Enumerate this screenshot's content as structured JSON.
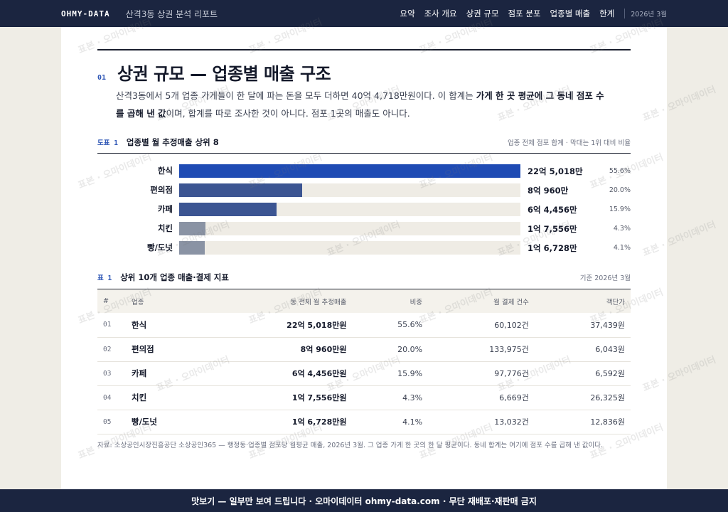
{
  "header": {
    "brand": "OHMY-DATA",
    "report_title": "산격3동 상권 분석 리포트",
    "nav": [
      "요약",
      "조사 개요",
      "상권 규모",
      "점포 분포",
      "업종별 매출",
      "한계"
    ],
    "date": "2026년 3월"
  },
  "section": {
    "number": "01",
    "title": "상권 규모 — 업종별 매출 구조",
    "lead_1": "산격3동에서 5개 업종 가게들이 한 달에 파는 돈을 모두 더하면 40억 4,718만원이다. 이 합계는 ",
    "lead_bold": "가게 한 곳 평균에 그 동네 점포 수를 곱해 낸 값",
    "lead_2": "이며, 합계를 따로 조사한 것이 아니다. 점포 1곳의 매출도 아니다."
  },
  "figure": {
    "tag": "도표 1",
    "title": "업종별 월 추정매출 상위 8",
    "note": "업종 전체 점포 합계 · 막대는 1위 대비 비율"
  },
  "chart_data": {
    "type": "bar",
    "orientation": "horizontal",
    "categories": [
      "한식",
      "편의점",
      "카페",
      "치킨",
      "빵/도넛"
    ],
    "values": [
      2250180000,
      809600000,
      644560000,
      175560000,
      167280000
    ],
    "value_labels": [
      "22억 5,018만",
      "8억 960만",
      "6억 4,456만",
      "1억 7,556만",
      "1억 6,728만"
    ],
    "shares": [
      "55.6%",
      "20.0%",
      "15.9%",
      "4.3%",
      "4.1%"
    ],
    "colors": [
      "#1f4bb4",
      "#3c5592",
      "#3c5592",
      "#8a93a4",
      "#8a93a4"
    ],
    "title": "업종별 월 추정매출 상위 8"
  },
  "table": {
    "tag": "표 1",
    "title": "상위 10개 업종 매출·결제 지표",
    "note": "기준 2026년 3월",
    "columns": [
      "#",
      "업종",
      "동 전체 월 추정매출",
      "비중",
      "월 결제 건수",
      "객단가"
    ],
    "rows": [
      [
        "01",
        "한식",
        "22억 5,018만원",
        "55.6%",
        "60,102건",
        "37,439원"
      ],
      [
        "02",
        "편의점",
        "8억 960만원",
        "20.0%",
        "133,975건",
        "6,043원"
      ],
      [
        "03",
        "카페",
        "6억 4,456만원",
        "15.9%",
        "97,776건",
        "6,592원"
      ],
      [
        "04",
        "치킨",
        "1억 7,556만원",
        "4.3%",
        "6,669건",
        "26,325원"
      ],
      [
        "05",
        "빵/도넛",
        "1억 6,728만원",
        "4.1%",
        "13,032건",
        "12,836원"
      ]
    ]
  },
  "source": "자료: 소상공인시장진흥공단 소상공인365 — 행정동·업종별 점포당 월평균 매출, 2026년 3월. 그 업종 가게 한 곳의 한 달 평균이다. 동네 합계는 여기에 점포 수를 곱해 낸 값이다.",
  "footer": "맛보기 — 일부만 보여 드립니다 · 오마이데이터 ohmy-data.com · 무단 재배포·재판매 금지",
  "watermark": "표본 · 오마이데이터 · ohmy-data.com · 무단 재배포·재판매 금지"
}
